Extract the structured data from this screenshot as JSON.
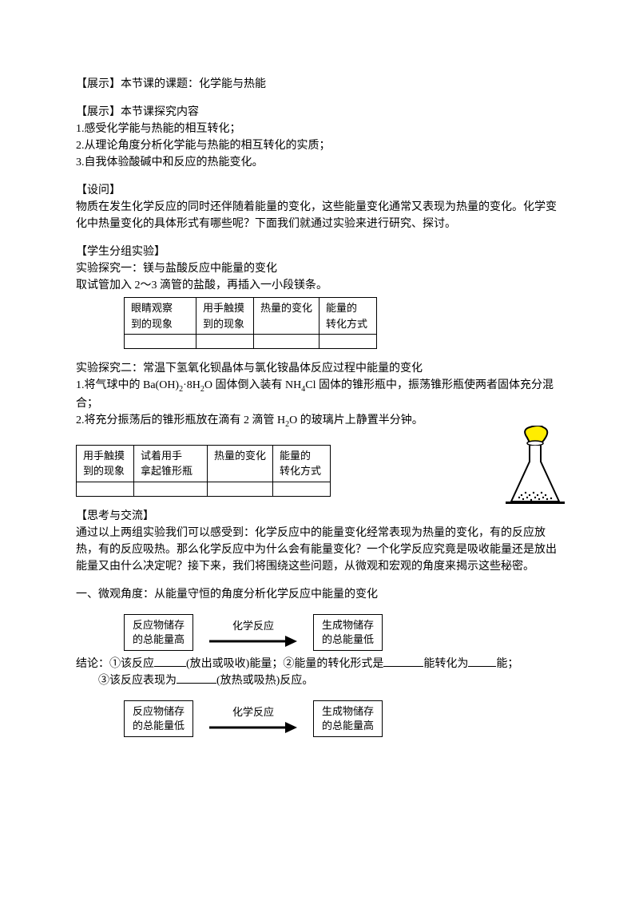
{
  "sec1": {
    "heading": "【展示】",
    "title": "本节课的课题：化学能与热能"
  },
  "sec2": {
    "heading": "【展示】",
    "title": "本节课探究内容",
    "items": [
      "1.感受化学能与热能的相互转化；",
      "2.从理论角度分析化学能与热能的相互转化的实质；",
      "3.自我体验酸碱中和反应的热能变化。"
    ]
  },
  "sec3": {
    "heading": "【设问】",
    "lines": [
      "物质在发生化学反应的同时还伴随着能量的变化，这些能量变化通常又表现为热量的变化。化学变化中热量变化的具体形式有哪些呢？下面我们就通过实验来进行研究、探讨。"
    ]
  },
  "sec4": {
    "heading": "【学生分组实验】",
    "exp1_title": "实验探究一：镁与盐酸反应中能量的变化",
    "exp1_desc": "取试管加入 2～3 滴管的盐酸，再插入一小段镁条。"
  },
  "table1_headers": [
    "眼睛观察\n到的现象",
    "用手触摸\n到的现象",
    "热量的变化",
    "能量的\n转化方式"
  ],
  "exp2": {
    "title": "实验探究二：常温下氢氧化钡晶体与氯化铵晶体反应过程中能量的变化",
    "step1_pre": "1.将气球中的 Ba(OH)",
    "step1_sub1": "2",
    "step1_mid1": "·8H",
    "step1_sub2": "2",
    "step1_mid2": "O 固体倒入装有 NH",
    "step1_sub3": "4",
    "step1_mid3": "Cl 固体的锥形瓶中，振荡锥形瓶使两者固体充分混合；",
    "step2_pre": "2.将充分振荡后的锥形瓶放在滴有 2 滴管 H",
    "step2_sub": "2",
    "step2_post": "O 的玻璃片上静置半分钟。"
  },
  "table2_headers": [
    "用手触摸\n到的现象",
    "试着用手\n拿起锥形瓶",
    "热量的变化",
    "能量的\n转化方式"
  ],
  "sec5": {
    "heading": "【思考与交流】",
    "text": "通过以上两组实验我们可以感受到：化学反应中的能量变化经常表现为热量的变化，有的反应放热，有的反应吸热。那么化学反应中为什么会有能量变化？一个化学反应究竟是吸收能量还是放出能量又由什么决定呢？接下来，我们将围绕这些问题，从微观和宏观的角度来揭示这些秘密。"
  },
  "angle1": "一、微观角度：从能量守恒的角度分析化学反应中能量的变化",
  "diagram": {
    "box1a": "反应物储存",
    "box1b": "的总能量高",
    "arrow_label": "化学反应",
    "box2a": "生成物储存",
    "box2b": "的总能量低",
    "box3a": "反应物储存",
    "box3b": "的总能量低",
    "box4a": "生成物储存",
    "box4b": "的总能量高"
  },
  "conclusion": {
    "pre1": "结论：①该反应",
    "post1": "(放出或吸收)能量；②能量的转化形式是",
    "mid2": "能转化为",
    "post2": "能；",
    "line2a": "③该反应表现为",
    "line2b": "(放热或吸热)反应。"
  },
  "colors": {
    "balloon": "#ffed00",
    "arrow": "#000000"
  }
}
